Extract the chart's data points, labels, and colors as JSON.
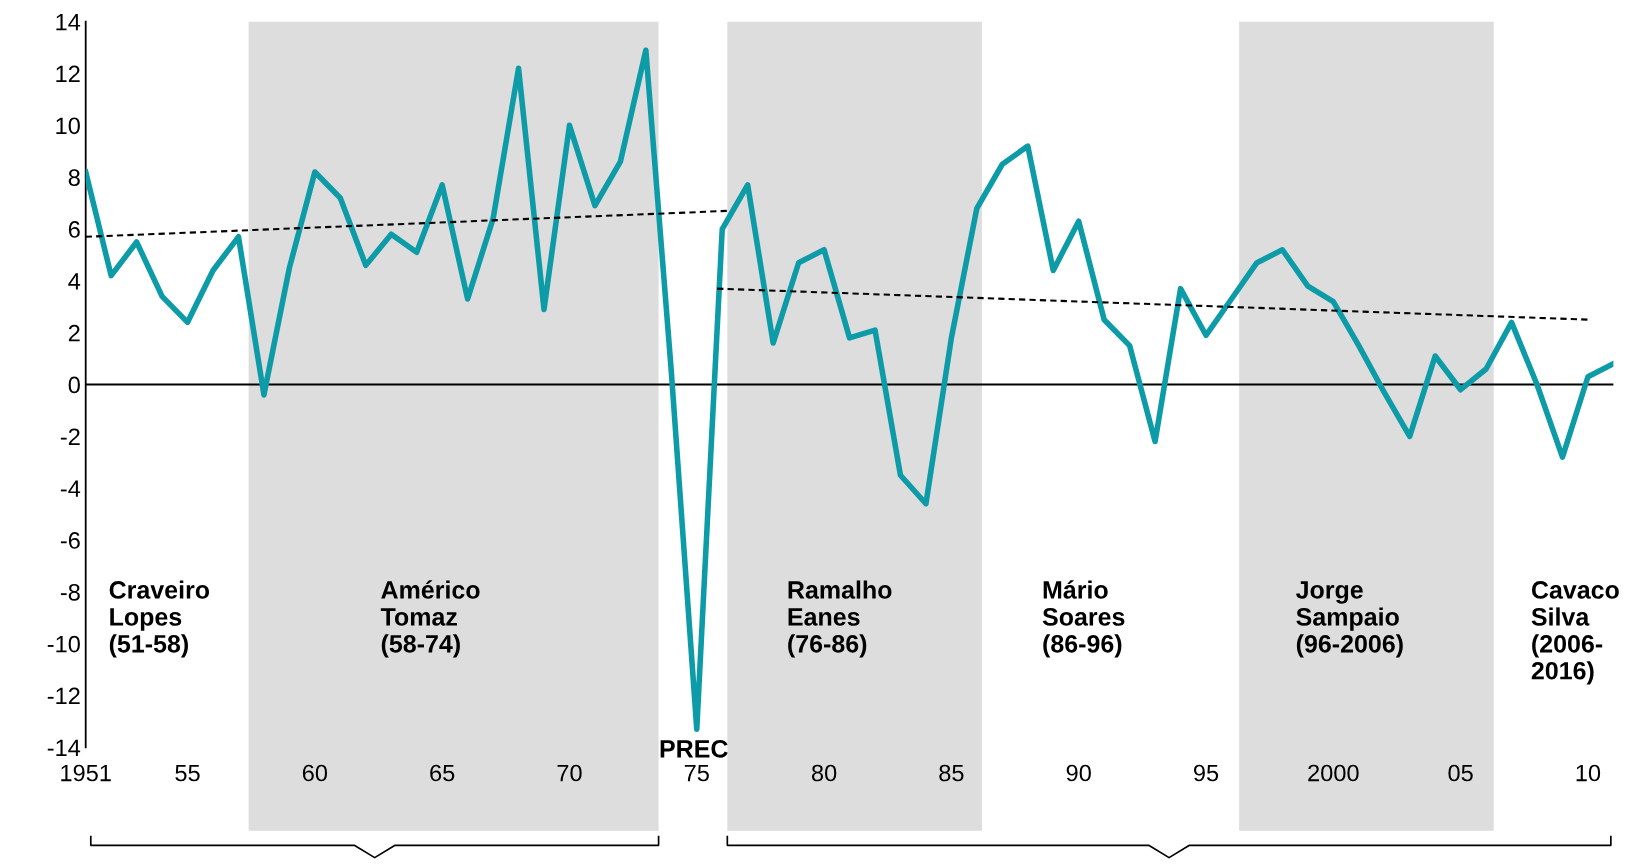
{
  "chart_data": {
    "type": "line",
    "x": [
      1951,
      1952,
      1953,
      1954,
      1955,
      1956,
      1957,
      1958,
      1959,
      1960,
      1961,
      1962,
      1963,
      1964,
      1965,
      1966,
      1967,
      1968,
      1969,
      1970,
      1971,
      1972,
      1973,
      1974,
      1975,
      1976,
      1977,
      1978,
      1979,
      1980,
      1981,
      1982,
      1983,
      1984,
      1985,
      1986,
      1987,
      1988,
      1989,
      1990,
      1991,
      1992,
      1993,
      1994,
      1995,
      1996,
      1997,
      1998,
      1999,
      2000,
      2001,
      2002,
      2003,
      2004,
      2005,
      2006,
      2007,
      2008,
      2009,
      2010,
      2011
    ],
    "series": [
      {
        "color": "#0e9ba8",
        "values": [
          8.2,
          4.2,
          5.5,
          3.4,
          2.4,
          4.4,
          5.7,
          -0.4,
          4.5,
          8.2,
          7.2,
          4.6,
          5.8,
          5.1,
          7.7,
          3.3,
          6.4,
          12.2,
          2.9,
          10.0,
          6.9,
          8.6,
          12.9,
          0.5,
          -13.3,
          6.0,
          7.7,
          1.6,
          4.7,
          5.2,
          1.8,
          2.1,
          -3.5,
          -4.6,
          1.8,
          6.8,
          8.5,
          9.2,
          4.4,
          6.3,
          2.5,
          1.5,
          -2.2,
          3.7,
          1.9,
          3.3,
          4.7,
          5.2,
          3.8,
          3.2,
          1.5,
          -0.3,
          -2.0,
          1.1,
          -0.2,
          0.6,
          2.4,
          0.0,
          -2.8,
          0.3,
          0.8
        ]
      },
      {
        "type": "line",
        "color": "#000000",
        "line_style": "dashed",
        "x": [
          1951,
          1976.2
        ],
        "values": [
          5.7,
          6.7
        ]
      },
      {
        "type": "line",
        "color": "#000000",
        "line_style": "dashed",
        "x": [
          1975.8,
          2010.1
        ],
        "values": [
          3.7,
          2.5
        ]
      }
    ],
    "xlim": [
      1951,
      2011
    ],
    "xticks": [
      {
        "value": 1951,
        "label": "1951"
      },
      {
        "value": 1955,
        "label": "55"
      },
      {
        "value": 1960,
        "label": "60"
      },
      {
        "value": 1965,
        "label": "65"
      },
      {
        "value": 1970,
        "label": "70"
      },
      {
        "value": 1975,
        "label": "75"
      },
      {
        "value": 1980,
        "label": "80"
      },
      {
        "value": 1985,
        "label": "85"
      },
      {
        "value": 1990,
        "label": "90"
      },
      {
        "value": 1995,
        "label": "95"
      },
      {
        "value": 2000,
        "label": "2000"
      },
      {
        "value": 2005,
        "label": "05"
      },
      {
        "value": 2010,
        "label": "10"
      }
    ],
    "ylim": [
      -14,
      14
    ],
    "yticks": [
      -14,
      -12,
      -10,
      -8,
      -6,
      -4,
      -2,
      0,
      2,
      4,
      6,
      8,
      10,
      12,
      14
    ],
    "bands": [
      {
        "axis": "x",
        "from": 1957.4,
        "to": 1973.5,
        "color": "#dddddd"
      },
      {
        "axis": "x",
        "from": 1976.2,
        "to": 1986.2,
        "color": "#dddddd"
      },
      {
        "axis": "x",
        "from": 1996.3,
        "to": 2006.3,
        "color": "#dddddd"
      }
    ],
    "ref_lines": [
      {
        "axis": "y",
        "value": 0,
        "color": "#000000"
      }
    ],
    "annotations": [
      "Craveiro\nLopes\n(51-58)",
      "Américo\nTomaz\n(58-74)",
      "PREC",
      "Ramalho\nEanes\n(76-86)",
      "Mário\nSoares\n(86-96)",
      "Jorge\nSampaio\n(96-2006)",
      "Cavaco\nSilva\n(2006-\n2016)"
    ],
    "grid": false,
    "legend": false,
    "marker": "none"
  }
}
